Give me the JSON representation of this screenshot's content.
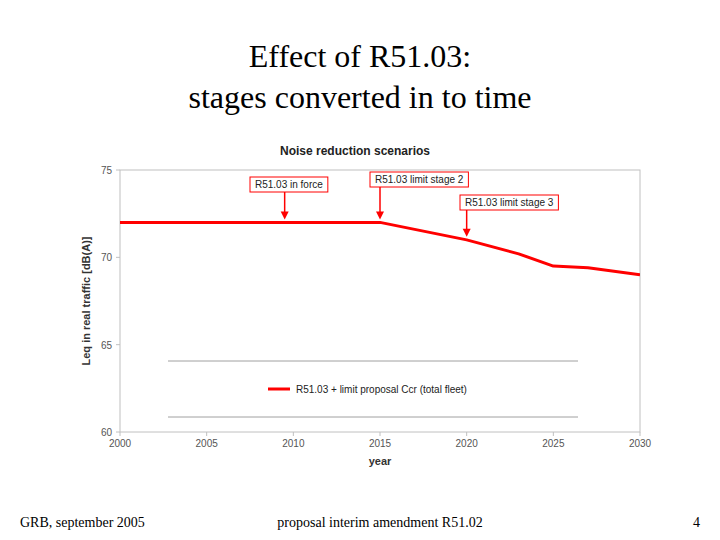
{
  "page": {
    "title": [
      "Effect of R51.03:",
      "stages converted in to time"
    ],
    "footer": {
      "left": "GRB, september 2005",
      "center": "proposal interim amendment R51.02",
      "page_number": 4
    }
  },
  "chart_data": {
    "type": "line",
    "title": "Noise reduction scenarios",
    "x_label": "year",
    "y_label": "Leq in real traffic [dB(A)]",
    "x": [
      2000,
      2015,
      2020,
      2023,
      2025,
      2027,
      2030
    ],
    "series": [
      {
        "name": "R51.03 + limit proposal Ccr (total fleet)",
        "color": "#ff0000",
        "values": [
          72,
          72,
          71,
          70.2,
          69.5,
          69.4,
          69
        ]
      }
    ],
    "xlim": [
      2000,
      2030
    ],
    "xticks": [
      2000,
      2005,
      2010,
      2015,
      2020,
      2025,
      2030
    ],
    "ylim": [
      60,
      75
    ],
    "yticks": [
      60,
      65,
      70,
      75
    ],
    "grid": false,
    "legend": "bottom",
    "annotations": [
      {
        "text": "R51.03 in force",
        "x": 2009.5,
        "y": 72
      },
      {
        "text": "R51.03 limit stage 2",
        "x": 2015,
        "y": 72
      },
      {
        "text": "R51.03 limit stage 3",
        "x": 2020,
        "y": 71
      }
    ]
  }
}
